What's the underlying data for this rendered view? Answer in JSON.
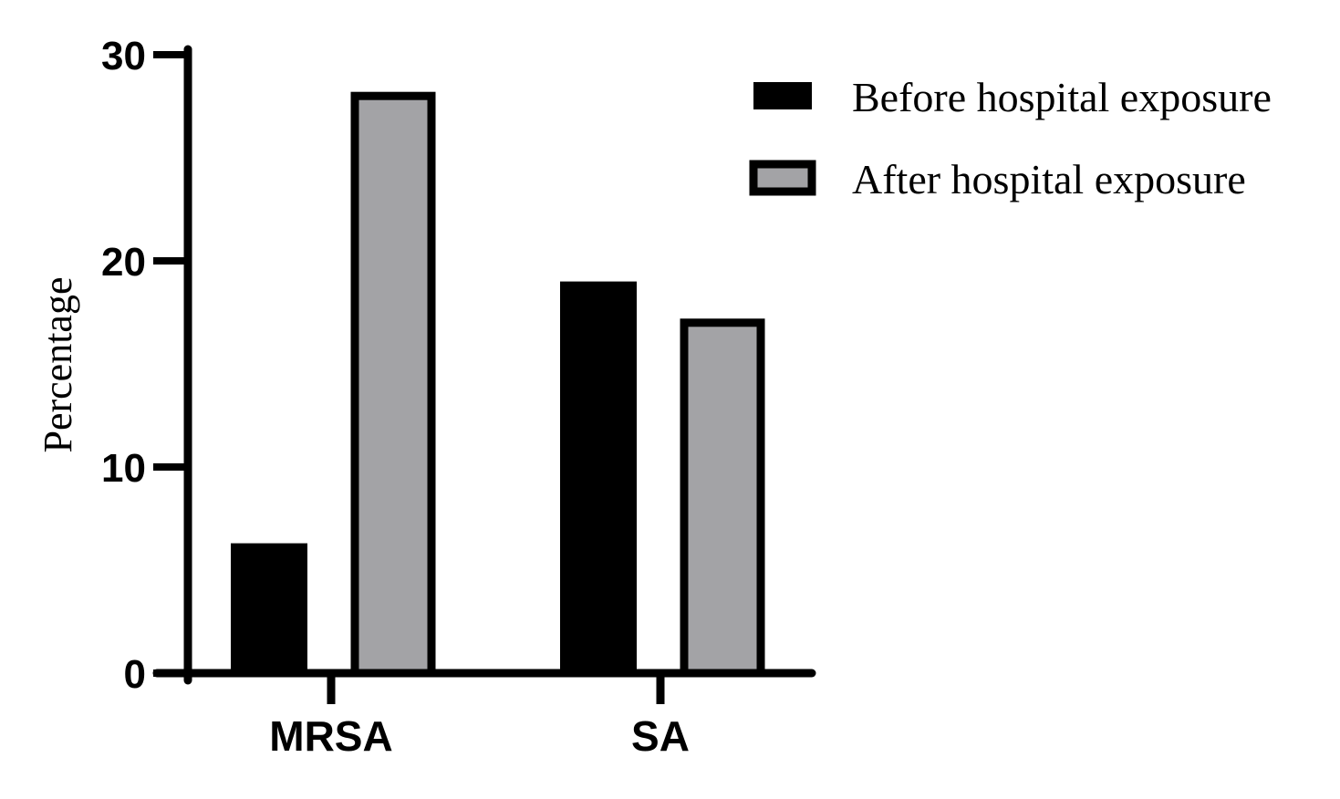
{
  "chart_data": {
    "type": "bar",
    "categories": [
      "MRSA",
      "SA"
    ],
    "series": [
      {
        "name": "Before hospital exposure",
        "values": [
          6.3,
          19.0
        ],
        "color": "#000000"
      },
      {
        "name": "After hospital exposure",
        "values": [
          28.0,
          17.0
        ],
        "color": "#a3a3a6"
      }
    ],
    "ylabel": "Percentage",
    "xlabel": "",
    "ylim": [
      0,
      30
    ],
    "yticks": [
      0,
      10,
      20,
      30
    ],
    "ytick_labels": [
      "0",
      "10",
      "20",
      "30"
    ],
    "grid": false,
    "legend_position": "top-right"
  }
}
